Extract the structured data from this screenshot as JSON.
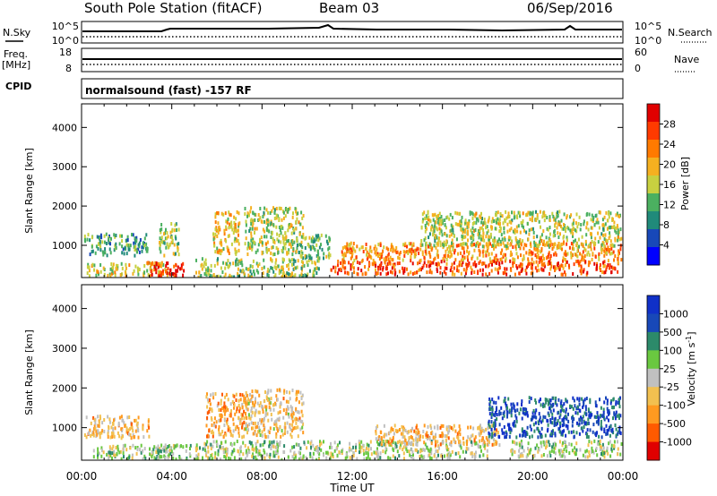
{
  "header": {
    "station": "South Pole Station (fitACF)",
    "beam": "Beam 03",
    "date": "06/Sep/2016"
  },
  "nsky_panel": {
    "left_label": "N.Sky",
    "left_ticks": [
      "10^5",
      "10^0"
    ],
    "right_label": "N.Search",
    "right_ticks": [
      "10^5",
      "10^0"
    ]
  },
  "freq_panel": {
    "left_label_line1": "Freq.",
    "left_label_line2": "[MHz]",
    "left_ticks": [
      "18",
      "8"
    ],
    "right_label": "Nave",
    "right_ticks": [
      "60",
      "0"
    ]
  },
  "cpid": {
    "label": "CPID",
    "text": "normalsound (fast) -157 RF"
  },
  "chart_data": [
    {
      "type": "heatmap",
      "title": "Power",
      "ylabel": "Slant Range [km]",
      "xlabel": "Time UT",
      "x_ticks": [
        "00:00",
        "04:00",
        "08:00",
        "12:00",
        "16:00",
        "20:00",
        "00:00"
      ],
      "y_ticks": [
        1000,
        2000,
        3000,
        4000
      ],
      "ylim": [
        180,
        4600
      ],
      "xlim_hours": [
        0,
        24
      ],
      "colorbar": {
        "label": "Power [dB]",
        "ticks": [
          "28",
          "24",
          "20",
          "16",
          "12",
          "8",
          "4"
        ],
        "range": [
          0,
          30
        ],
        "colors": [
          "#0000ff",
          "#1848b8",
          "#208a7a",
          "#4bb060",
          "#c8d040",
          "#f5b020",
          "#ff7a00",
          "#ff3a00",
          "#e00000"
        ]
      },
      "clusters": [
        {
          "t": [
            0.1,
            2.9
          ],
          "r": [
            780,
            1330
          ],
          "level": 10
        },
        {
          "t": [
            0.2,
            3.8
          ],
          "r": [
            250,
            600
          ],
          "level": 16
        },
        {
          "t": [
            2.9,
            4.6
          ],
          "r": [
            220,
            600
          ],
          "level": 27
        },
        {
          "t": [
            3.4,
            4.3
          ],
          "r": [
            780,
            1600
          ],
          "level": 14
        },
        {
          "t": [
            5.8,
            7.0
          ],
          "r": [
            800,
            1900
          ],
          "level": 18
        },
        {
          "t": [
            7.2,
            9.8
          ],
          "r": [
            800,
            2000
          ],
          "level": 15
        },
        {
          "t": [
            5.0,
            10.5
          ],
          "r": [
            220,
            700
          ],
          "level": 14
        },
        {
          "t": [
            9.5,
            11.0
          ],
          "r": [
            700,
            1300
          ],
          "level": 12
        },
        {
          "t": [
            11.0,
            23.8
          ],
          "r": [
            300,
            650
          ],
          "level": 24
        },
        {
          "t": [
            11.5,
            23.9
          ],
          "r": [
            650,
            1100
          ],
          "level": 20
        },
        {
          "t": [
            15.0,
            23.9
          ],
          "r": [
            1000,
            1900
          ],
          "level": 15
        }
      ]
    },
    {
      "type": "heatmap",
      "title": "Velocity",
      "ylabel": "Slant Range [km]",
      "xlabel": "Time UT",
      "x_ticks": [
        "00:00",
        "04:00",
        "08:00",
        "12:00",
        "16:00",
        "20:00",
        "00:00"
      ],
      "y_ticks": [
        1000,
        2000,
        3000,
        4000
      ],
      "ylim": [
        180,
        4600
      ],
      "xlim_hours": [
        0,
        24
      ],
      "colorbar": {
        "label": "Velocity [m s^-1]",
        "ticks": [
          "1000",
          "500",
          "100",
          "25",
          "-25",
          "-100",
          "-500",
          "-1000"
        ],
        "range": [
          -1200,
          1200
        ],
        "colors": [
          "#e00000",
          "#ff5a00",
          "#ff9a20",
          "#f2c050",
          "#c0c0c0",
          "#6ac840",
          "#2c8a6a",
          "#1848b8",
          "#1030c8"
        ]
      },
      "clusters": [
        {
          "t": [
            0.1,
            3.0
          ],
          "r": [
            780,
            1330
          ],
          "level": -300
        },
        {
          "t": [
            0.5,
            3.8
          ],
          "r": [
            250,
            600
          ],
          "level": 80
        },
        {
          "t": [
            3.0,
            4.8
          ],
          "r": [
            220,
            600
          ],
          "level": 200
        },
        {
          "t": [
            5.5,
            7.2
          ],
          "r": [
            800,
            1900
          ],
          "level": -450
        },
        {
          "t": [
            7.2,
            9.8
          ],
          "r": [
            800,
            2000
          ],
          "level": -250
        },
        {
          "t": [
            5.0,
            11.0
          ],
          "r": [
            220,
            700
          ],
          "level": 90
        },
        {
          "t": [
            11.0,
            18.0
          ],
          "r": [
            250,
            700
          ],
          "level": 60
        },
        {
          "t": [
            13.0,
            18.5
          ],
          "r": [
            600,
            1100
          ],
          "level": -300
        },
        {
          "t": [
            18.0,
            23.9
          ],
          "r": [
            800,
            1800
          ],
          "level": 850
        },
        {
          "t": [
            19.0,
            23.9
          ],
          "r": [
            300,
            700
          ],
          "level": 60
        }
      ]
    }
  ]
}
